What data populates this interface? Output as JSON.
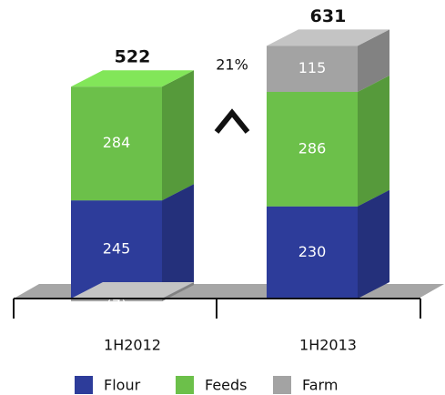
{
  "chart_data": {
    "type": "bar",
    "stacked": true,
    "categories": [
      "1H2012",
      "1H2013"
    ],
    "series": [
      {
        "name": "Flour",
        "color": "#2d3c9a",
        "values": [
          245,
          230
        ]
      },
      {
        "name": "Feeds",
        "color": "#6cc04a",
        "values": [
          284,
          286
        ]
      },
      {
        "name": "Farm",
        "color": "#a3a3a3",
        "values": [
          -7,
          115
        ],
        "value_labels": [
          "(7)",
          "115"
        ]
      }
    ],
    "totals": [
      522,
      631
    ],
    "annotation": "21%"
  }
}
